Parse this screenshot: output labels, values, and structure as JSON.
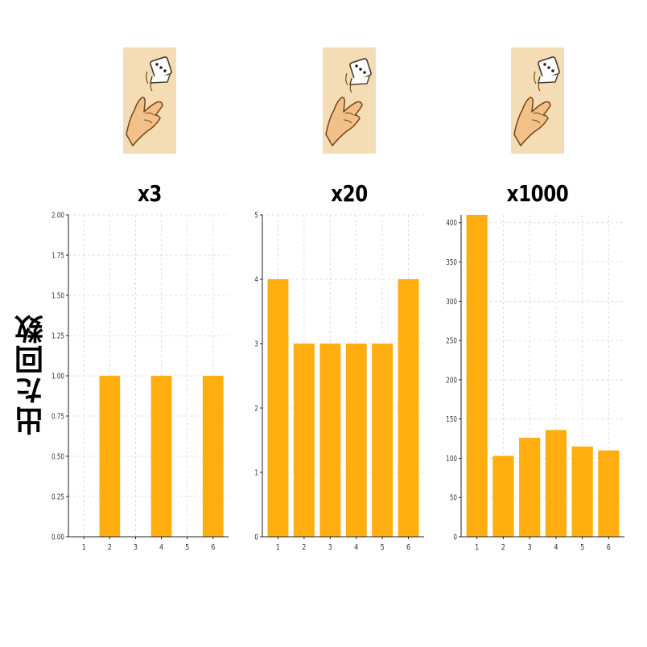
{
  "ylabel": "出た回数",
  "colors": {
    "bar": "#ffad0f",
    "grid": "#d6d6d6",
    "axis": "#222222",
    "card_bg": "#f4ddb4",
    "hand": "#f2c18a",
    "hand_stroke": "#7a4a1e"
  },
  "icons": [
    "hand-throwing-dice-icon",
    "hand-throwing-dice-icon",
    "hand-throwing-dice-icon"
  ],
  "chart_data": [
    {
      "type": "bar",
      "title": "x3",
      "categories": [
        "1",
        "2",
        "3",
        "4",
        "5",
        "6"
      ],
      "values": [
        0,
        1,
        0,
        1,
        0,
        1
      ],
      "ylim": [
        0,
        2
      ],
      "yticks": [
        "0.00",
        "0.25",
        "0.50",
        "0.75",
        "1.00",
        "1.25",
        "1.50",
        "1.75",
        "2.00"
      ],
      "ytick_values": [
        0,
        0.25,
        0.5,
        0.75,
        1,
        1.25,
        1.5,
        1.75,
        2
      ],
      "grid": true
    },
    {
      "type": "bar",
      "title": "x20",
      "categories": [
        "1",
        "2",
        "3",
        "4",
        "5",
        "6"
      ],
      "values": [
        4,
        3,
        3,
        3,
        3,
        4
      ],
      "ylim": [
        0,
        5
      ],
      "yticks": [
        "0",
        "1",
        "2",
        "3",
        "4",
        "5"
      ],
      "ytick_values": [
        0,
        1,
        2,
        3,
        4,
        5
      ],
      "grid": true
    },
    {
      "type": "bar",
      "title": "x1000",
      "categories": [
        "1",
        "2",
        "3",
        "4",
        "5",
        "6"
      ],
      "values": [
        410,
        103,
        126,
        136,
        115,
        110
      ],
      "ylim": [
        0,
        410
      ],
      "yticks": [
        "0",
        "50",
        "100",
        "150",
        "200",
        "250",
        "300",
        "350",
        "400"
      ],
      "ytick_values": [
        0,
        50,
        100,
        150,
        200,
        250,
        300,
        350,
        400
      ],
      "grid": true
    }
  ]
}
